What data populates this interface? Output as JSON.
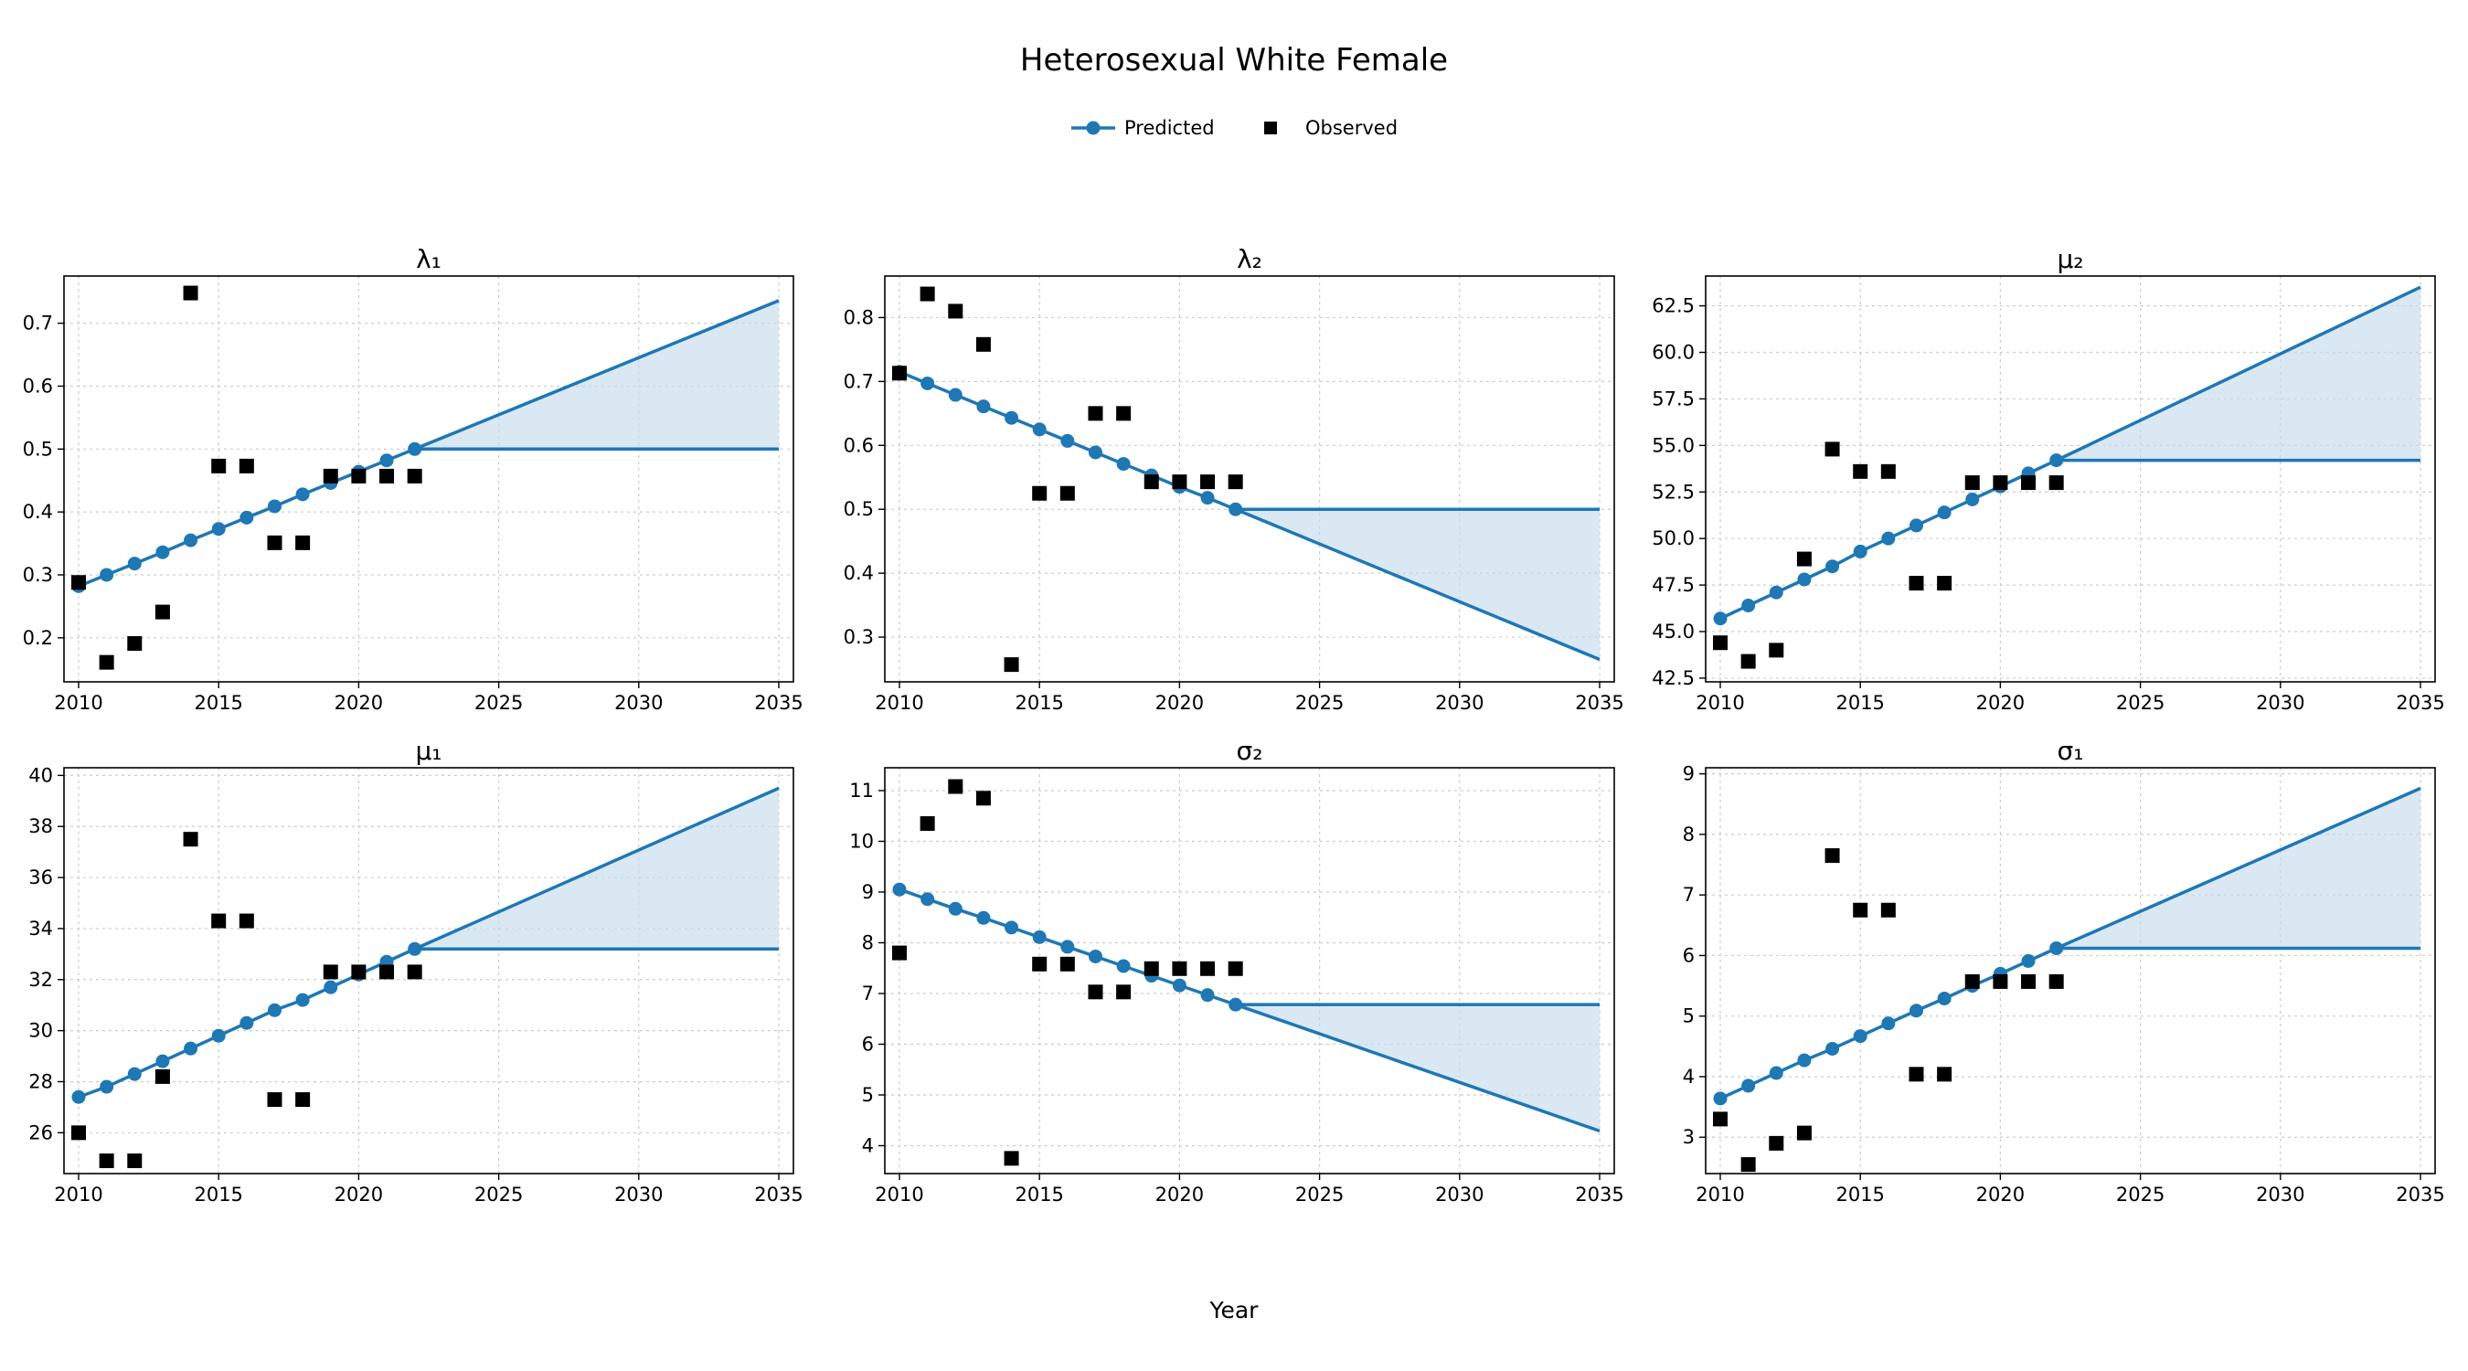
{
  "figure": {
    "title": "Heterosexual White Female",
    "xlabel": "Year",
    "legend": {
      "placement": "top-center",
      "predicted_label": "Predicted",
      "observed_label": "Observed"
    },
    "colors": {
      "predicted": "#1f77b4",
      "band": "#c6dbee",
      "observed": "#000000",
      "grid": "#cccccc"
    }
  },
  "chart_data": [
    {
      "type": "line",
      "title": "λ₁",
      "xlim": [
        2010,
        2035
      ],
      "ylim": [
        0.13,
        0.775
      ],
      "xticks": [
        2010,
        2015,
        2020,
        2025,
        2030,
        2035
      ],
      "yticks": [
        0.2,
        0.3,
        0.4,
        0.5,
        0.6,
        0.7
      ],
      "ytick_labels": [
        "0.2",
        "0.3",
        "0.4",
        "0.5",
        "0.6",
        "0.7"
      ],
      "grid": true,
      "predicted": {
        "name": "Predicted",
        "x": [
          2010,
          2011,
          2012,
          2013,
          2014,
          2015,
          2016,
          2017,
          2018,
          2019,
          2020,
          2021,
          2022
        ],
        "y": [
          0.282,
          0.3,
          0.318,
          0.336,
          0.355,
          0.373,
          0.391,
          0.409,
          0.428,
          0.446,
          0.464,
          0.482,
          0.5
        ]
      },
      "observed": {
        "name": "Observed",
        "x": [
          2010,
          2011,
          2012,
          2013,
          2014,
          2015,
          2016,
          2017,
          2018,
          2019,
          2020,
          2021,
          2022
        ],
        "y": [
          0.288,
          0.161,
          0.191,
          0.241,
          0.748,
          0.473,
          0.473,
          0.351,
          0.351,
          0.457,
          0.457,
          0.457,
          0.457
        ]
      },
      "projection": {
        "x": [
          2022,
          2035
        ],
        "flat": [
          0.5,
          0.5
        ],
        "trend": [
          0.5,
          0.736
        ]
      }
    },
    {
      "type": "line",
      "title": "λ₂",
      "xlim": [
        2010,
        2035
      ],
      "ylim": [
        0.23,
        0.865
      ],
      "xticks": [
        2010,
        2015,
        2020,
        2025,
        2030,
        2035
      ],
      "yticks": [
        0.3,
        0.4,
        0.5,
        0.6,
        0.7,
        0.8
      ],
      "ytick_labels": [
        "0.3",
        "0.4",
        "0.5",
        "0.6",
        "0.7",
        "0.8"
      ],
      "grid": true,
      "predicted": {
        "name": "Predicted",
        "x": [
          2010,
          2011,
          2012,
          2013,
          2014,
          2015,
          2016,
          2017,
          2018,
          2019,
          2020,
          2021,
          2022
        ],
        "y": [
          0.715,
          0.697,
          0.679,
          0.661,
          0.643,
          0.625,
          0.607,
          0.589,
          0.571,
          0.553,
          0.535,
          0.518,
          0.5
        ]
      },
      "observed": {
        "name": "Observed",
        "x": [
          2010,
          2011,
          2012,
          2013,
          2014,
          2015,
          2016,
          2017,
          2018,
          2019,
          2020,
          2021,
          2022
        ],
        "y": [
          0.713,
          0.837,
          0.81,
          0.758,
          0.257,
          0.525,
          0.525,
          0.65,
          0.65,
          0.543,
          0.543,
          0.543,
          0.543
        ]
      },
      "projection": {
        "x": [
          2022,
          2035
        ],
        "flat": [
          0.5,
          0.5
        ],
        "trend": [
          0.5,
          0.265
        ]
      }
    },
    {
      "type": "line",
      "title": "μ₂",
      "xlim": [
        2010,
        2035
      ],
      "ylim": [
        42.3,
        64.1
      ],
      "xticks": [
        2010,
        2015,
        2020,
        2025,
        2030,
        2035
      ],
      "yticks": [
        42.5,
        45.0,
        47.5,
        50.0,
        52.5,
        55.0,
        57.5,
        60.0,
        62.5
      ],
      "ytick_labels": [
        "42.5",
        "45.0",
        "47.5",
        "50.0",
        "52.5",
        "55.0",
        "57.5",
        "60.0",
        "62.5"
      ],
      "grid": true,
      "predicted": {
        "name": "Predicted",
        "x": [
          2010,
          2011,
          2012,
          2013,
          2014,
          2015,
          2016,
          2017,
          2018,
          2019,
          2020,
          2021,
          2022
        ],
        "y": [
          45.7,
          46.4,
          47.1,
          47.8,
          48.5,
          49.3,
          50.0,
          50.7,
          51.4,
          52.1,
          52.8,
          53.5,
          54.2
        ]
      },
      "observed": {
        "name": "Observed",
        "x": [
          2010,
          2011,
          2012,
          2013,
          2014,
          2015,
          2016,
          2017,
          2018,
          2019,
          2020,
          2021,
          2022
        ],
        "y": [
          44.4,
          43.4,
          44.0,
          48.9,
          54.8,
          53.6,
          53.6,
          47.6,
          47.6,
          53.0,
          53.0,
          53.0,
          53.0
        ]
      },
      "projection": {
        "x": [
          2022,
          2035
        ],
        "flat": [
          54.2,
          54.2
        ],
        "trend": [
          54.2,
          63.5
        ]
      }
    },
    {
      "type": "line",
      "title": "μ₁",
      "xlim": [
        2010,
        2035
      ],
      "ylim": [
        24.4,
        40.3
      ],
      "xticks": [
        2010,
        2015,
        2020,
        2025,
        2030,
        2035
      ],
      "yticks": [
        26,
        28,
        30,
        32,
        34,
        36,
        38,
        40
      ],
      "ytick_labels": [
        "26",
        "28",
        "30",
        "32",
        "34",
        "36",
        "38",
        "40"
      ],
      "grid": true,
      "predicted": {
        "name": "Predicted",
        "x": [
          2010,
          2011,
          2012,
          2013,
          2014,
          2015,
          2016,
          2017,
          2018,
          2019,
          2020,
          2021,
          2022
        ],
        "y": [
          27.4,
          27.8,
          28.3,
          28.8,
          29.3,
          29.8,
          30.3,
          30.8,
          31.2,
          31.7,
          32.2,
          32.7,
          33.2
        ]
      },
      "observed": {
        "name": "Observed",
        "x": [
          2010,
          2011,
          2012,
          2013,
          2014,
          2015,
          2016,
          2017,
          2018,
          2019,
          2020,
          2021,
          2022
        ],
        "y": [
          26.0,
          24.9,
          24.9,
          28.2,
          37.5,
          34.3,
          34.3,
          27.3,
          27.3,
          32.3,
          32.3,
          32.3,
          32.3
        ]
      },
      "projection": {
        "x": [
          2022,
          2035
        ],
        "flat": [
          33.2,
          33.2
        ],
        "trend": [
          33.2,
          39.5
        ]
      }
    },
    {
      "type": "line",
      "title": "σ₂",
      "xlim": [
        2010,
        2035
      ],
      "ylim": [
        3.45,
        11.45
      ],
      "xticks": [
        2010,
        2015,
        2020,
        2025,
        2030,
        2035
      ],
      "yticks": [
        4,
        5,
        6,
        7,
        8,
        9,
        10,
        11
      ],
      "ytick_labels": [
        "4",
        "5",
        "6",
        "7",
        "8",
        "9",
        "10",
        "11"
      ],
      "grid": true,
      "predicted": {
        "name": "Predicted",
        "x": [
          2010,
          2011,
          2012,
          2013,
          2014,
          2015,
          2016,
          2017,
          2018,
          2019,
          2020,
          2021,
          2022
        ],
        "y": [
          9.05,
          8.86,
          8.67,
          8.49,
          8.3,
          8.11,
          7.92,
          7.73,
          7.54,
          7.35,
          7.16,
          6.97,
          6.78
        ]
      },
      "observed": {
        "name": "Observed",
        "x": [
          2010,
          2011,
          2012,
          2013,
          2014,
          2015,
          2016,
          2017,
          2018,
          2019,
          2020,
          2021,
          2022
        ],
        "y": [
          7.8,
          10.35,
          11.08,
          10.85,
          3.75,
          7.58,
          7.58,
          7.03,
          7.03,
          7.49,
          7.49,
          7.49,
          7.49
        ]
      },
      "projection": {
        "x": [
          2022,
          2035
        ],
        "flat": [
          6.78,
          6.78
        ],
        "trend": [
          6.78,
          4.29
        ]
      }
    },
    {
      "type": "line",
      "title": "σ₁",
      "xlim": [
        2010,
        2035
      ],
      "ylim": [
        2.4,
        9.1
      ],
      "xticks": [
        2010,
        2015,
        2020,
        2025,
        2030,
        2035
      ],
      "yticks": [
        3,
        4,
        5,
        6,
        7,
        8,
        9
      ],
      "ytick_labels": [
        "3",
        "4",
        "5",
        "6",
        "7",
        "8",
        "9"
      ],
      "grid": true,
      "predicted": {
        "name": "Predicted",
        "x": [
          2010,
          2011,
          2012,
          2013,
          2014,
          2015,
          2016,
          2017,
          2018,
          2019,
          2020,
          2021,
          2022
        ],
        "y": [
          3.64,
          3.85,
          4.06,
          4.27,
          4.46,
          4.67,
          4.88,
          5.09,
          5.29,
          5.5,
          5.7,
          5.91,
          6.12
        ]
      },
      "observed": {
        "name": "Observed",
        "x": [
          2010,
          2011,
          2012,
          2013,
          2014,
          2015,
          2016,
          2017,
          2018,
          2019,
          2020,
          2021,
          2022
        ],
        "y": [
          3.3,
          2.55,
          2.9,
          3.07,
          7.65,
          6.75,
          6.75,
          4.04,
          4.04,
          5.57,
          5.57,
          5.57,
          5.57
        ]
      },
      "projection": {
        "x": [
          2022,
          2035
        ],
        "flat": [
          6.12,
          6.12
        ],
        "trend": [
          6.12,
          8.76
        ]
      }
    }
  ]
}
